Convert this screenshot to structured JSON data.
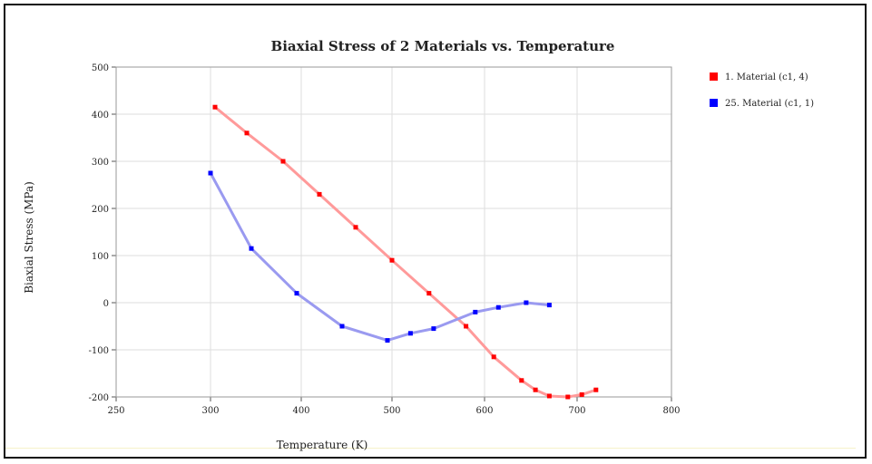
{
  "chart_data": {
    "type": "line",
    "title": "Biaxial Stress of 2 Materials vs. Temperature",
    "xlabel": "Temperature (K)",
    "ylabel": "Biaxial Stress (MPa)",
    "xlim": [
      250,
      800
    ],
    "ylim": [
      -200,
      500
    ],
    "xticks": [
      250,
      300,
      400,
      500,
      600,
      700,
      800
    ],
    "xtick_labels": [
      "250",
      "300",
      "400",
      "500",
      "600",
      "700",
      "800"
    ],
    "yticks": [
      500,
      400,
      300,
      200,
      100,
      0,
      -100,
      -200
    ],
    "ytick_labels": [
      "500",
      "400",
      "300",
      "200",
      "100",
      "0",
      "-100",
      "-200"
    ],
    "grid": true,
    "legend_position": "right",
    "series": [
      {
        "name": "1. Material (c1, 4)",
        "color": "#ff0000",
        "line_color": "#ff9a9a",
        "x": [
          305,
          340,
          380,
          420,
          460,
          500,
          540,
          580,
          610,
          640,
          655,
          670,
          690,
          705,
          720
        ],
        "y": [
          415,
          360,
          300,
          230,
          160,
          90,
          20,
          -50,
          -115,
          -165,
          -185,
          -198,
          -200,
          -195,
          -185
        ]
      },
      {
        "name": "25. Material (c1, 1)",
        "color": "#0000ff",
        "line_color": "#9a9af0",
        "x": [
          300,
          345,
          395,
          445,
          495,
          520,
          545,
          590,
          615,
          645,
          670
        ],
        "y": [
          275,
          115,
          20,
          -50,
          -80,
          -65,
          -55,
          -20,
          -10,
          0,
          -5
        ]
      }
    ]
  }
}
